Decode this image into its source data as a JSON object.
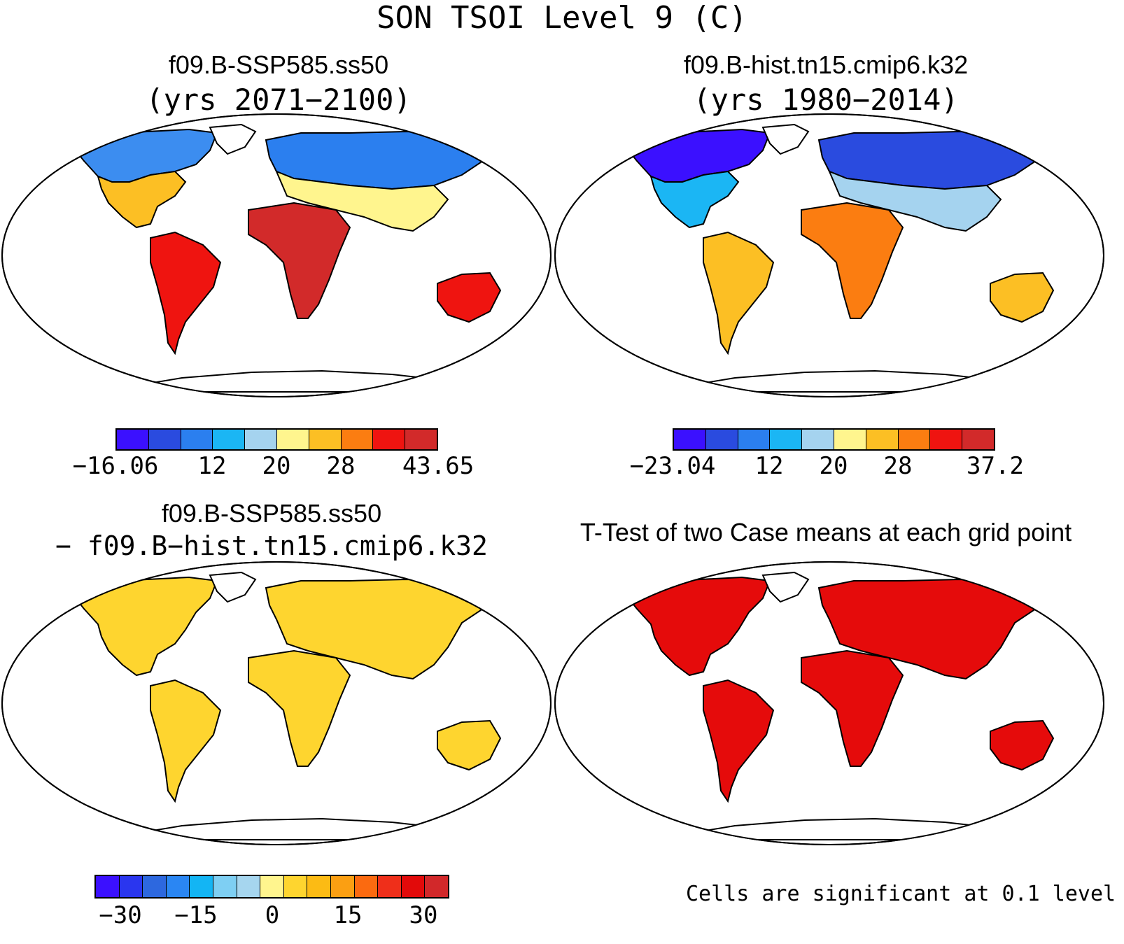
{
  "main_title": "SON TSOI Level 9 (C)",
  "panels": [
    {
      "id": "p1",
      "title": "f09.B-SSP585.ss50",
      "subtitle": "(yrs 2071−2100)",
      "colorbar": {
        "colors": [
          "#3b10ff",
          "#2a4bdf",
          "#2b7fef",
          "#1bb6f4",
          "#a5d3ef",
          "#fff58e",
          "#fcbf24",
          "#fb7d11",
          "#ef1410",
          "#d22a2a"
        ],
        "labels": [
          "−16.06",
          "12",
          "20",
          "28",
          "43.65"
        ]
      }
    },
    {
      "id": "p2",
      "title": "f09.B-hist.tn15.cmip6.k32",
      "subtitle": "(yrs 1980−2014)",
      "colorbar": {
        "colors": [
          "#3b10ff",
          "#2a4bdf",
          "#2b7fef",
          "#1bb6f4",
          "#a5d3ef",
          "#fff58e",
          "#fcbf24",
          "#fb7d11",
          "#ef1410",
          "#d22a2a"
        ],
        "labels": [
          "−23.04",
          "12",
          "20",
          "28",
          "37.2"
        ]
      }
    },
    {
      "id": "p3",
      "title": "f09.B-SSP585.ss50",
      "subtitle": "− f09.B−hist.tn15.cmip6.k32",
      "colorbar": {
        "colors": [
          "#3b10ff",
          "#2a36ef",
          "#2d68df",
          "#2a86f3",
          "#13b5f4",
          "#7ecff3",
          "#a6d6ef",
          "#fff58e",
          "#fed52f",
          "#fcbb14",
          "#fb9f12",
          "#fb6a10",
          "#ef2f1a",
          "#e20a0a",
          "#d2282a"
        ],
        "labels": [
          "−30",
          "−15",
          "0",
          "15",
          "30"
        ]
      }
    },
    {
      "id": "p4",
      "title": "T-Test of two Case means at each grid point",
      "footnote": "Cells are significant at 0.1 level"
    }
  ]
}
